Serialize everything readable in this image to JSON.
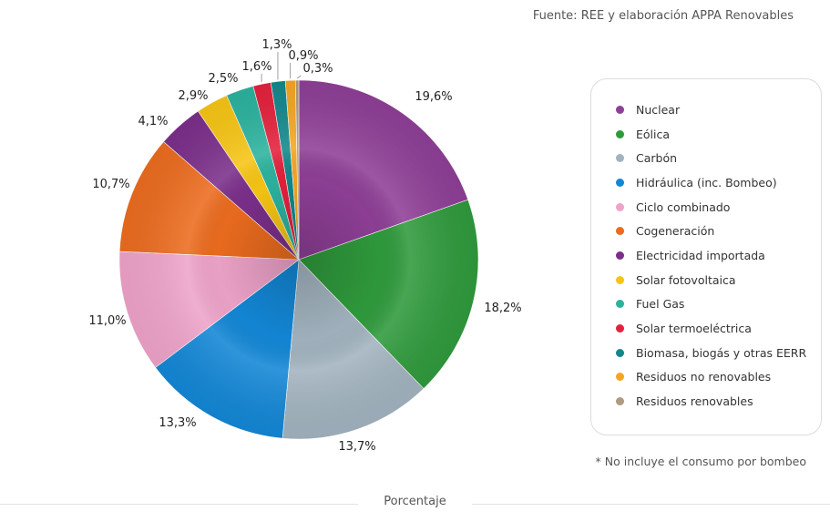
{
  "source": "Fuente: REE y elaboración APPA Renovables",
  "footnote": "* No incluye el consumo por bombeo",
  "chart_data": {
    "type": "pie",
    "title": "",
    "xlabel": "Porcentaje",
    "slices": [
      {
        "name": "Nuclear",
        "value": 19.6,
        "label": "19,6%",
        "color": "#8e3f96"
      },
      {
        "name": "Eólica",
        "value": 18.2,
        "label": "18,2%",
        "color": "#2f9a3c"
      },
      {
        "name": "Carbón",
        "value": 13.7,
        "label": "13,7%",
        "color": "#a2b3bf"
      },
      {
        "name": "Hidráulica (inc. Bombeo)",
        "value": 13.3,
        "label": "13,3%",
        "color": "#1387d6"
      },
      {
        "name": "Ciclo combinado",
        "value": 11.0,
        "label": "11,0%",
        "color": "#eea3c9"
      },
      {
        "name": "Cogeneración",
        "value": 10.7,
        "label": "10,7%",
        "color": "#ec6c1f"
      },
      {
        "name": "Electricidad importada",
        "value": 4.1,
        "label": "4,1%",
        "color": "#7b2f8a"
      },
      {
        "name": "Solar fotovoltaica",
        "value": 2.9,
        "label": "2,9%",
        "color": "#f7c514"
      },
      {
        "name": "Fuel Gas",
        "value": 2.5,
        "label": "2,5%",
        "color": "#2bb39e"
      },
      {
        "name": "Solar termoeléctrica",
        "value": 1.6,
        "label": "1,6%",
        "color": "#e4213c"
      },
      {
        "name": "Biomasa, biogás y otras EERR",
        "value": 1.3,
        "label": "1,3%",
        "color": "#13888c"
      },
      {
        "name": "Residuos no renovables",
        "value": 0.9,
        "label": "0,9%",
        "color": "#f5a623"
      },
      {
        "name": "Residuos renovables",
        "value": 0.3,
        "label": "0,3%",
        "color": "#b09a80"
      }
    ],
    "legend_position": "right"
  }
}
